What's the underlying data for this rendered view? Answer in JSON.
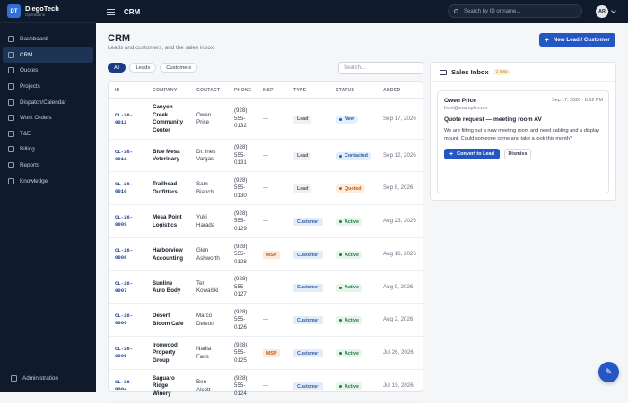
{
  "brand": {
    "logo": "DT",
    "name": "DiegoTech",
    "sub": "Operations"
  },
  "nav": [
    {
      "label": "Dashboard",
      "icon": "grid-icon"
    },
    {
      "label": "CRM",
      "icon": "users-icon",
      "active": true
    },
    {
      "label": "Quotes",
      "icon": "quote-icon"
    },
    {
      "label": "Projects",
      "icon": "folder-icon"
    },
    {
      "label": "Dispatch/Calendar",
      "icon": "calendar-icon"
    },
    {
      "label": "Work Orders",
      "icon": "briefcase-icon"
    },
    {
      "label": "T&E",
      "icon": "clock-icon"
    },
    {
      "label": "Billing",
      "icon": "invoice-icon"
    },
    {
      "label": "Reports",
      "icon": "chart-icon"
    },
    {
      "label": "Knowledge",
      "icon": "book-icon"
    }
  ],
  "admin": {
    "label": "Administration"
  },
  "topbar": {
    "title": "CRM",
    "search_placeholder": "Search by ID or name...",
    "avatar": "AR"
  },
  "page": {
    "title": "CRM",
    "subtitle": "Leads and customers, and the sales inbox.",
    "new_button": "New Lead / Customer"
  },
  "filters": [
    "All",
    "Leads",
    "Customers"
  ],
  "table_search": "Search...",
  "columns": [
    "ID",
    "COMPANY",
    "CONTACT",
    "PHONE",
    "MSP",
    "TYPE",
    "STATUS",
    "ADDED"
  ],
  "rows": [
    {
      "id": [
        "CL-26-",
        "0012"
      ],
      "company": [
        "Canyon",
        "Creek",
        "Community",
        "Center"
      ],
      "contact": [
        "Owen",
        "Price"
      ],
      "phone": [
        "(928)",
        "555-",
        "0132"
      ],
      "msp": "—",
      "type": "Lead",
      "status": "New",
      "added": "Sep 17, 2026"
    },
    {
      "id": [
        "CL-26-",
        "0011"
      ],
      "company": [
        "Blue Mesa",
        "Veterinary"
      ],
      "contact": [
        "Dr. Ines",
        "Vargas"
      ],
      "phone": [
        "(928)",
        "555-",
        "0131"
      ],
      "msp": "—",
      "type": "Lead",
      "status": "Contacted",
      "added": "Sep 12, 2026"
    },
    {
      "id": [
        "CL-26-",
        "0010"
      ],
      "company": [
        "Trailhead",
        "Outfitters"
      ],
      "contact": [
        "Sam",
        "Bianchi"
      ],
      "phone": [
        "(928)",
        "555-",
        "0130"
      ],
      "msp": "—",
      "type": "Lead",
      "status": "Quoted",
      "added": "Sep 8, 2026"
    },
    {
      "id": [
        "CL-26-",
        "0009"
      ],
      "company": [
        "Mesa Point",
        "Logistics"
      ],
      "contact": [
        "Yuki",
        "Harada"
      ],
      "phone": [
        "(928)",
        "555-",
        "0129"
      ],
      "msp": "—",
      "type": "Customer",
      "status": "Active",
      "added": "Aug 23, 2026"
    },
    {
      "id": [
        "CL-26-",
        "0008"
      ],
      "company": [
        "Harborview",
        "Accounting"
      ],
      "contact": [
        "Glen",
        "Ashworth"
      ],
      "phone": [
        "(928)",
        "555-",
        "0128"
      ],
      "msp": "MSP",
      "type": "Customer",
      "status": "Active",
      "added": "Aug 16, 2026"
    },
    {
      "id": [
        "CL-26-",
        "0007"
      ],
      "company": [
        "Sunline",
        "Auto Body"
      ],
      "contact": [
        "Teri",
        "Kowalski"
      ],
      "phone": [
        "(928)",
        "555-",
        "0127"
      ],
      "msp": "—",
      "type": "Customer",
      "status": "Active",
      "added": "Aug 9, 2026"
    },
    {
      "id": [
        "CL-26-",
        "0006"
      ],
      "company": [
        "Desert",
        "Bloom Cafe"
      ],
      "contact": [
        "Marco",
        "Deleon"
      ],
      "phone": [
        "(928)",
        "555-",
        "0126"
      ],
      "msp": "—",
      "type": "Customer",
      "status": "Active",
      "added": "Aug 2, 2026"
    },
    {
      "id": [
        "CL-26-",
        "0005"
      ],
      "company": [
        "Ironwood",
        "Property",
        "Group"
      ],
      "contact": [
        "Nadia",
        "Faris"
      ],
      "phone": [
        "(928)",
        "555-",
        "0125"
      ],
      "msp": "MSP",
      "type": "Customer",
      "status": "Active",
      "added": "Jul 26, 2026"
    },
    {
      "id": [
        "CL-26-",
        "0004"
      ],
      "company": [
        "Saguaro",
        "Ridge",
        "Winery"
      ],
      "contact": [
        "Ben",
        "Alcott"
      ],
      "phone": [
        "(928)",
        "555-",
        "0124"
      ],
      "msp": "—",
      "type": "Customer",
      "status": "Active",
      "added": "Jul 19, 2026"
    }
  ],
  "inbox": {
    "title": "Sales Inbox",
    "badge": "1 new",
    "message": {
      "name": "Owen Price",
      "email": "front@example.com",
      "date": "Sep 17, 2026 · 8:52 PM",
      "subject": "Quote request — meeting room AV",
      "body": "We are fitting out a new meeting room and need cabling and a display mount. Could someone come and take a look this month?",
      "convert": "Convert to Lead",
      "dismiss": "Dismiss"
    }
  },
  "fab": {
    "icon": "edit-icon"
  }
}
